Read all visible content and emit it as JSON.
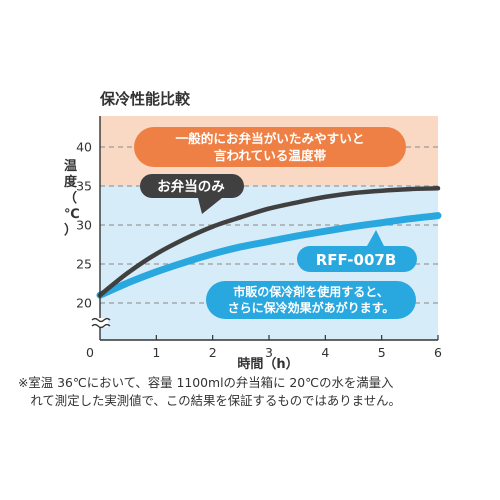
{
  "chart_data": {
    "type": "line",
    "title": "保冷性能比較",
    "xlabel": "時間（h）",
    "ylabel": "温度（℃）",
    "xlim": [
      0,
      6
    ],
    "ylim": [
      20,
      42
    ],
    "x_ticks": [
      "0",
      "1",
      "2",
      "3",
      "4",
      "5",
      "6"
    ],
    "y_ticks": [
      "20",
      "25",
      "30",
      "35",
      "40"
    ],
    "grid": "horizontal-dashed",
    "band": {
      "from": 35,
      "to": 42,
      "color": "#f9d9c4",
      "label_lines": [
        "一般的にお弁当がいたみやすいと",
        "言われている温度帯"
      ]
    },
    "lower_background_color": "#d6ecf9",
    "series": [
      {
        "name": "お弁当のみ",
        "color": "#404040",
        "x": [
          0,
          0.5,
          1,
          1.5,
          2,
          2.5,
          3,
          3.5,
          4,
          4.5,
          5,
          5.5,
          6
        ],
        "y": [
          21,
          23.9,
          26.3,
          28.2,
          29.8,
          31,
          32.1,
          32.9,
          33.6,
          34.1,
          34.4,
          34.6,
          34.7
        ]
      },
      {
        "name": "RFF-007B",
        "color": "#29a8e0",
        "x": [
          0,
          0.5,
          1,
          1.5,
          2,
          2.5,
          3,
          3.5,
          4,
          4.5,
          5,
          5.5,
          6
        ],
        "y": [
          21,
          22.6,
          24,
          25.2,
          26.3,
          27.2,
          27.9,
          28.6,
          29.2,
          29.8,
          30.3,
          30.8,
          31.2
        ]
      }
    ],
    "callout": [
      "市販の保冷剤を使用すると、",
      "さらに保冷効果があがります。"
    ]
  },
  "footnote_lines": [
    "※室温 36℃において、容量 1100mlの弁当箱に 20℃の水を満量入",
    "　れて測定した実測値で、この結果を保証するものではありません。"
  ]
}
